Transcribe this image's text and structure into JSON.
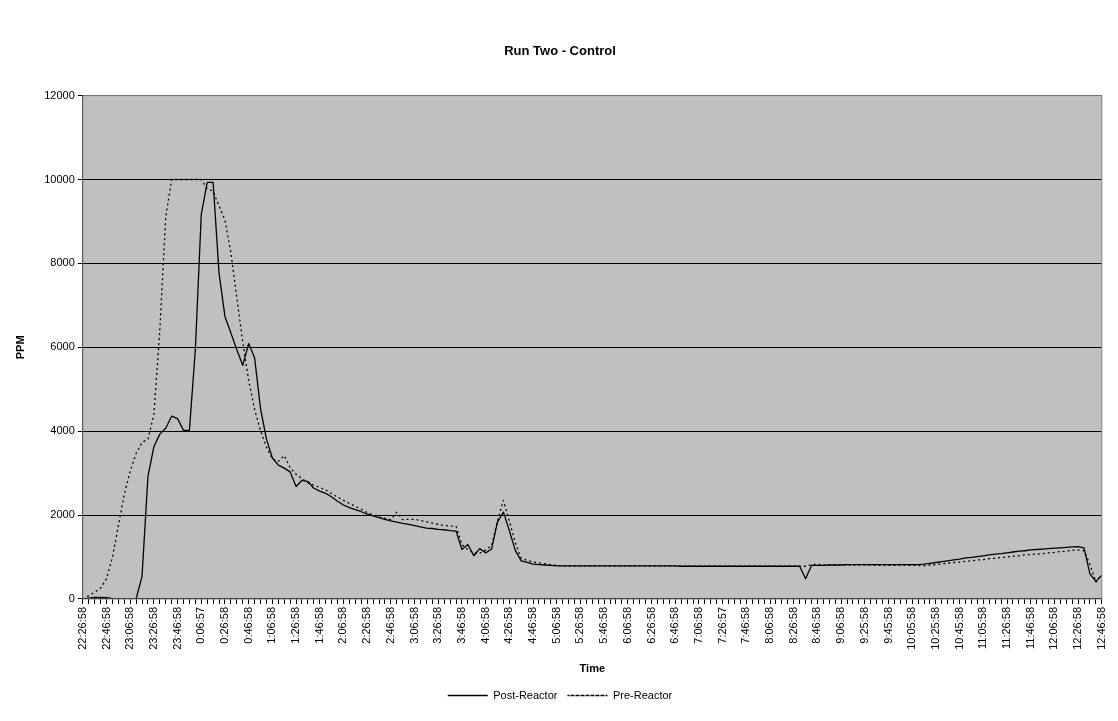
{
  "chart_data": {
    "type": "line",
    "title": "Run Two - Control",
    "xlabel": "Time",
    "ylabel": "PPM",
    "ylim": [
      0,
      12000
    ],
    "yticks": [
      0,
      2000,
      4000,
      6000,
      8000,
      10000,
      12000
    ],
    "categories": [
      "22:26:58",
      null,
      null,
      null,
      "22:46:58",
      null,
      null,
      null,
      "23:06:58",
      null,
      null,
      null,
      "23:26:58",
      null,
      null,
      null,
      "23:46:58",
      null,
      null,
      null,
      "0:06:57",
      null,
      null,
      null,
      "0:26:58",
      null,
      null,
      null,
      "0:46:58",
      null,
      null,
      null,
      "1:06:58",
      null,
      null,
      null,
      "1:26:58",
      null,
      null,
      null,
      "1:46:58",
      null,
      null,
      null,
      "2:06:58",
      null,
      null,
      null,
      "2:26:58",
      null,
      null,
      null,
      "2:46:58",
      null,
      null,
      null,
      "3:06:58",
      null,
      null,
      null,
      "3:26:58",
      null,
      null,
      null,
      "3:46:58",
      null,
      null,
      null,
      "4:06:58",
      null,
      null,
      null,
      "4:26:58",
      null,
      null,
      null,
      "4:46:58",
      null,
      null,
      null,
      "5:06:58",
      null,
      null,
      null,
      "5:26:58",
      null,
      null,
      null,
      "5:46:58",
      null,
      null,
      null,
      "6:06:58",
      null,
      null,
      null,
      "6:26:58",
      null,
      null,
      null,
      "6:46:58",
      null,
      null,
      null,
      "7:06:58",
      null,
      null,
      null,
      "7:26:57",
      null,
      null,
      null,
      "7:46:58",
      null,
      null,
      null,
      "8:06:58",
      null,
      null,
      null,
      "8:26:58",
      null,
      null,
      null,
      "8:46:58",
      null,
      null,
      null,
      "9:06:58",
      null,
      null,
      null,
      "9:25:58",
      null,
      null,
      null,
      "9:45:58",
      null,
      null,
      null,
      "10:05:58",
      null,
      null,
      null,
      "10:25:58",
      null,
      null,
      null,
      "10:45:58",
      null,
      null,
      null,
      "11:05:58",
      null,
      null,
      null,
      "11:26:58",
      null,
      null,
      null,
      "11:46:58",
      null,
      null,
      null,
      "12:06:58",
      null,
      null,
      null,
      "12:26:58",
      null,
      null,
      null,
      "12:46:58"
    ],
    "grid": "y",
    "legend": "bottom",
    "marker": "none",
    "series": [
      {
        "name": "Post-Reactor",
        "color": "#000000",
        "line_style": "solid",
        "values": [
          0,
          20,
          40,
          40,
          30,
          10,
          0,
          0,
          0,
          0,
          540,
          2920,
          3630,
          3930,
          4070,
          4360,
          4300,
          4020,
          4020,
          5950,
          9170,
          9930,
          9930,
          7760,
          6730,
          6340,
          5940,
          5570,
          6090,
          5750,
          4540,
          3810,
          3360,
          3190,
          3120,
          3030,
          2680,
          2830,
          2800,
          2640,
          2570,
          2520,
          2430,
          2330,
          2240,
          2180,
          2130,
          2080,
          2020,
          1980,
          1940,
          1900,
          1860,
          1830,
          1800,
          1780,
          1750,
          1720,
          1690,
          1680,
          1660,
          1650,
          1630,
          1620,
          1180,
          1300,
          1030,
          1200,
          1100,
          1190,
          1840,
          2070,
          1630,
          1160,
          910,
          870,
          830,
          820,
          810,
          800,
          790,
          790,
          790,
          790,
          790,
          790,
          790,
          790,
          790,
          790,
          790,
          790,
          790,
          790,
          790,
          790,
          790,
          790,
          790,
          790,
          790,
          780,
          780,
          780,
          780,
          780,
          780,
          780,
          780,
          780,
          780,
          780,
          780,
          780,
          780,
          780,
          780,
          780,
          780,
          780,
          780,
          780,
          480,
          800,
          800,
          800,
          810,
          810,
          810,
          820,
          820,
          820,
          820,
          820,
          820,
          820,
          820,
          820,
          820,
          820,
          820,
          820,
          830,
          850,
          870,
          890,
          910,
          930,
          950,
          980,
          990,
          1010,
          1030,
          1050,
          1070,
          1080,
          1100,
          1120,
          1140,
          1150,
          1170,
          1180,
          1190,
          1200,
          1210,
          1220,
          1230,
          1240,
          1250,
          1220,
          600,
          420,
          570
        ]
      },
      {
        "name": "Pre-Reactor",
        "color": "#000000",
        "line_style": "dotted",
        "values": [
          0,
          80,
          160,
          260,
          480,
          990,
          1740,
          2490,
          3050,
          3470,
          3730,
          3810,
          4400,
          6400,
          9110,
          10000,
          10000,
          10000,
          10000,
          10000,
          10000,
          9780,
          9720,
          9370,
          9030,
          8250,
          7180,
          6130,
          5210,
          4520,
          4010,
          3620,
          3340,
          3280,
          3420,
          3130,
          2970,
          2870,
          2770,
          2710,
          2660,
          2600,
          2510,
          2430,
          2350,
          2280,
          2210,
          2140,
          2060,
          2000,
          1950,
          1920,
          1890,
          2070,
          1890,
          1900,
          1900,
          1870,
          1840,
          1810,
          1780,
          1750,
          1740,
          1730,
          1290,
          1180,
          1090,
          1090,
          1170,
          1270,
          1860,
          2350,
          1860,
          1340,
          970,
          920,
          880,
          860,
          840,
          820,
          800,
          790,
          790,
          790,
          790,
          790,
          790,
          790,
          790,
          790,
          790,
          790,
          790,
          790,
          790,
          790,
          790,
          790,
          790,
          790,
          790,
          780,
          780,
          780,
          780,
          780,
          780,
          780,
          780,
          780,
          780,
          780,
          780,
          780,
          780,
          780,
          780,
          780,
          780,
          780,
          780,
          780,
          780,
          820,
          830,
          810,
          810,
          810,
          810,
          810,
          810,
          810,
          810,
          810,
          800,
          800,
          800,
          800,
          800,
          800,
          800,
          800,
          790,
          810,
          820,
          840,
          850,
          870,
          880,
          900,
          910,
          930,
          940,
          960,
          970,
          990,
          1000,
          1020,
          1030,
          1050,
          1060,
          1070,
          1080,
          1100,
          1110,
          1130,
          1140,
          1160,
          1170,
          1150,
          830,
          400,
          580
        ]
      }
    ]
  }
}
